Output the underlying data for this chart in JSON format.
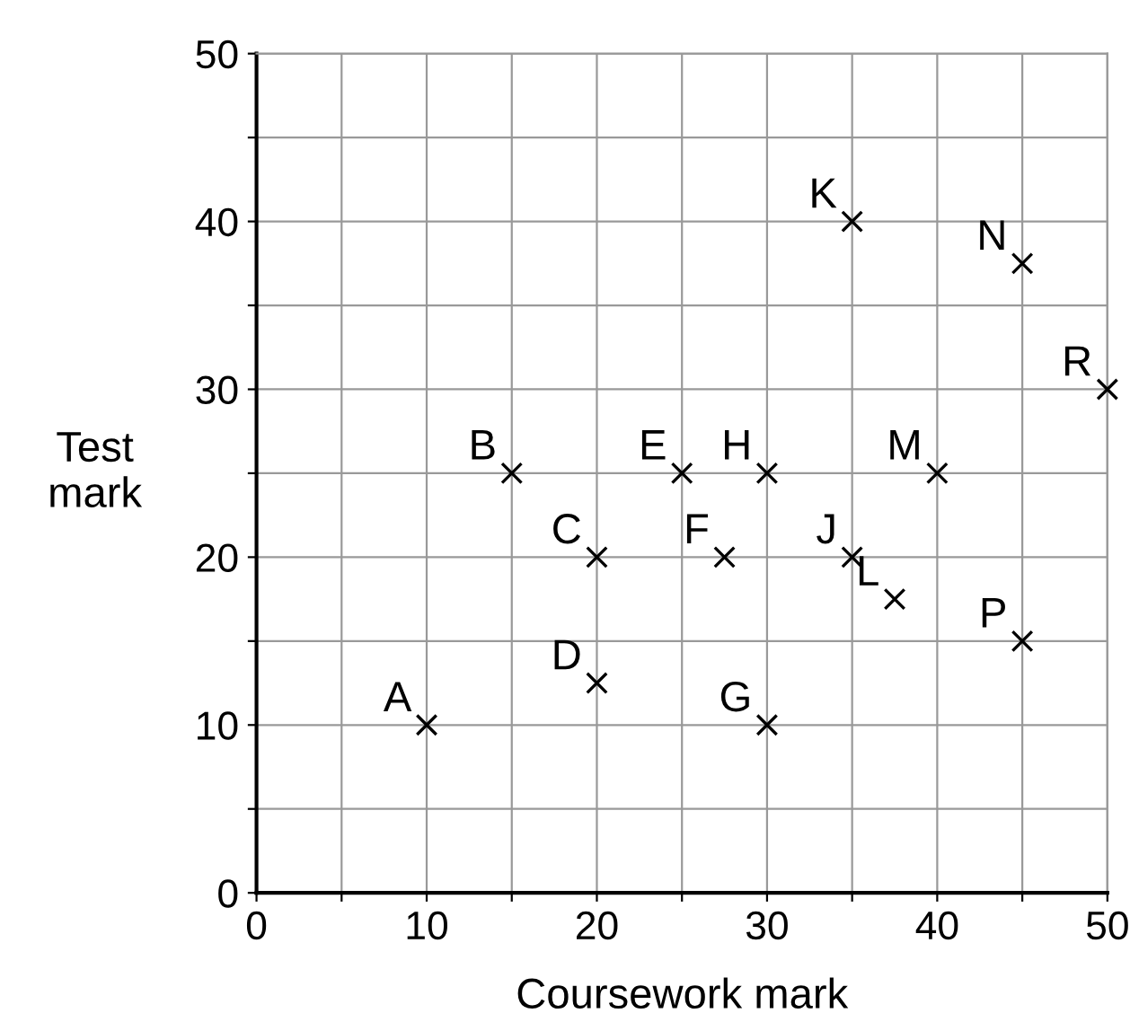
{
  "chart_data": {
    "type": "scatter",
    "xlabel": "Coursework mark",
    "ylabel": "Test\nmark",
    "x": [
      10,
      15,
      20,
      20,
      25,
      27.5,
      30,
      30,
      35,
      35,
      37.5,
      40,
      45,
      45,
      50
    ],
    "values": [
      10,
      25,
      20,
      12.5,
      25,
      20,
      10,
      25,
      20,
      40,
      17.5,
      25,
      37.5,
      15,
      30
    ],
    "color": "#000000",
    "marker": "cross",
    "annotations": [
      {
        "text": "A",
        "x": 10,
        "y": 10
      },
      {
        "text": "B",
        "x": 15,
        "y": 25
      },
      {
        "text": "C",
        "x": 20,
        "y": 20
      },
      {
        "text": "D",
        "x": 20,
        "y": 12.5
      },
      {
        "text": "E",
        "x": 25,
        "y": 25
      },
      {
        "text": "F",
        "x": 27.5,
        "y": 20
      },
      {
        "text": "G",
        "x": 30,
        "y": 10
      },
      {
        "text": "H",
        "x": 30,
        "y": 25
      },
      {
        "text": "J",
        "x": 35,
        "y": 20
      },
      {
        "text": "K",
        "x": 35,
        "y": 40
      },
      {
        "text": "L",
        "x": 37.5,
        "y": 17.5
      },
      {
        "text": "M",
        "x": 40,
        "y": 25
      },
      {
        "text": "N",
        "x": 45,
        "y": 37.5
      },
      {
        "text": "P",
        "x": 45,
        "y": 15
      },
      {
        "text": "R",
        "x": 50,
        "y": 30
      }
    ],
    "xlim": [
      0,
      50
    ],
    "ylim": [
      0,
      50
    ],
    "xticks": [
      0,
      {
        "value": 5,
        "label": null
      },
      10,
      {
        "value": 15,
        "label": null
      },
      20,
      {
        "value": 25,
        "label": null
      },
      30,
      {
        "value": 35,
        "label": null
      },
      40,
      {
        "value": 45,
        "label": null
      },
      50
    ],
    "yticks": [
      0,
      {
        "value": 5,
        "label": null
      },
      10,
      {
        "value": 15,
        "label": null
      },
      20,
      {
        "value": 25,
        "label": null
      },
      30,
      {
        "value": 35,
        "label": null
      },
      40,
      {
        "value": 45,
        "label": null
      },
      50
    ],
    "grid": true
  }
}
